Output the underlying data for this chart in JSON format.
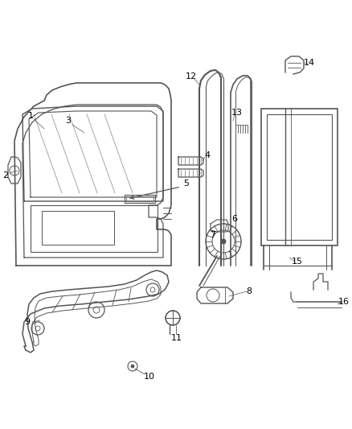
{
  "bg_color": "#ffffff",
  "line_color": "#555555",
  "label_color": "#000000",
  "fig_width": 4.38,
  "fig_height": 5.33,
  "dpi": 100
}
